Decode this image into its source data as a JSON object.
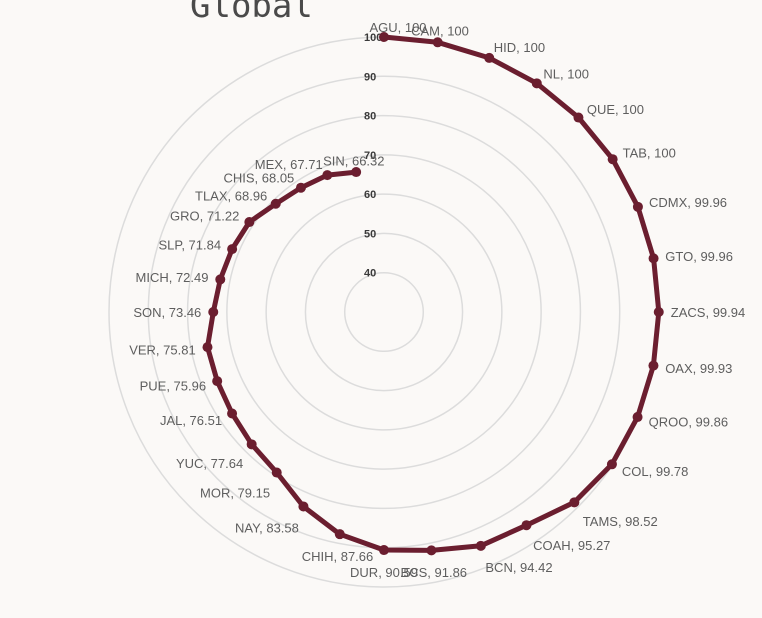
{
  "chart_data": {
    "type": "radar",
    "title": "Global",
    "r_ticks": [
      40,
      50,
      60,
      70,
      80,
      90,
      100
    ],
    "rlim": [
      30,
      100
    ],
    "series_color": "#6b1e2f",
    "grid_color": "#dcdcdc",
    "categories": [
      "AGU",
      "CAM",
      "HID",
      "NL",
      "QUE",
      "TAB",
      "CDMX",
      "GTO",
      "ZACS",
      "OAX",
      "QROO",
      "COL",
      "TAMS",
      "COAH",
      "BCN",
      "BCS",
      "DUR",
      "CHIH",
      "NAY",
      "MOR",
      "YUC",
      "JAL",
      "PUE",
      "VER",
      "SON",
      "MICH",
      "SLP",
      "GRO",
      "TLAX",
      "CHIS",
      "MEX",
      "SIN"
    ],
    "point_labels": [
      "AGU, 100",
      "CAM, 100",
      "HID, 100",
      "NL, 100",
      "QUE, 100",
      "TAB, 100",
      "CDMX, 99.96",
      "GTO, 99.96",
      "ZACS, 99.94",
      "OAX, 99.93",
      "QROO, 99.86",
      "COL, 99.78",
      "TAMS, 98.52",
      "COAH, 95.27",
      "BCN, 94.42",
      "BCS, 91.86",
      "DUR, 90.59",
      "CHIH, 87.66",
      "NAY, 83.58",
      "MOR, 79.15",
      "YUC, 77.64",
      "JAL, 76.51",
      "PUE, 75.96",
      "VER, 75.81",
      "SON, 73.46",
      "MICH, 72.49",
      "SLP, 71.84",
      "GRO, 71.22",
      "TLAX, 68.96",
      "CHIS, 68.05",
      "MEX, 67.71",
      "SIN, 66.32"
    ],
    "values": [
      100,
      100,
      100,
      100,
      100,
      100,
      99.96,
      99.96,
      99.94,
      99.93,
      99.86,
      99.78,
      98.52,
      95.27,
      94.42,
      91.86,
      90.59,
      87.66,
      83.58,
      79.15,
      77.64,
      76.51,
      75.96,
      75.81,
      73.46,
      72.49,
      71.84,
      71.22,
      68.96,
      68.05,
      67.71,
      66.32
    ]
  }
}
